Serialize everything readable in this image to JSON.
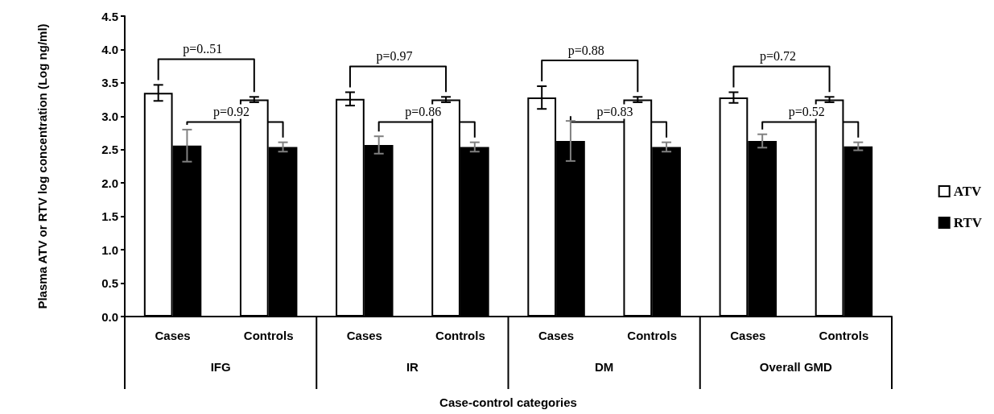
{
  "chart_data": {
    "type": "bar",
    "xlabel": "Case-control categories",
    "ylabel": "Plasma ATV or RTV log concentration (Log ng/ml)",
    "categories": [
      "Cases",
      "Controls",
      "Cases",
      "Controls",
      "Cases",
      "Controls",
      "Cases",
      "Controls"
    ],
    "series": [
      {
        "name": "ATV",
        "color": "#ffffff",
        "values": [
          3.35,
          3.25,
          3.26,
          3.25,
          3.28,
          3.25,
          3.28,
          3.25
        ],
        "errors": [
          0.12,
          0.04,
          0.1,
          0.04,
          0.17,
          0.04,
          0.08,
          0.04
        ]
      },
      {
        "name": "RTV",
        "color": "#000000",
        "values": [
          2.56,
          2.54,
          2.57,
          2.54,
          2.63,
          2.54,
          2.63,
          2.55
        ],
        "errors": [
          0.24,
          0.07,
          0.13,
          0.07,
          0.3,
          0.07,
          0.1,
          0.06
        ]
      }
    ],
    "ylim": [
      0,
      4.5
    ],
    "yticks": [
      {
        "value": 0,
        "label": "0.0"
      },
      {
        "value": 0.5,
        "label": "0.5"
      },
      {
        "value": 1,
        "label": "1.0"
      },
      {
        "value": 1.5,
        "label": "1.5"
      },
      {
        "value": 2,
        "label": "2.0"
      },
      {
        "value": 2.5,
        "label": "2.5"
      },
      {
        "value": 3,
        "label": "3.0"
      },
      {
        "value": 3.5,
        "label": "3.5"
      },
      {
        "value": 4,
        "label": "4.0"
      },
      {
        "value": 4.5,
        "label": "4.5"
      }
    ],
    "grid": false,
    "legend": "right",
    "annotations": [
      "p=0..51",
      "p=0.92",
      "p=0.97",
      "p=0.86",
      "p=0.88",
      "p=0.83",
      "p=0.72",
      "p=0.52",
      "IFG",
      "IR",
      "DM",
      "Overall GMD"
    ]
  }
}
